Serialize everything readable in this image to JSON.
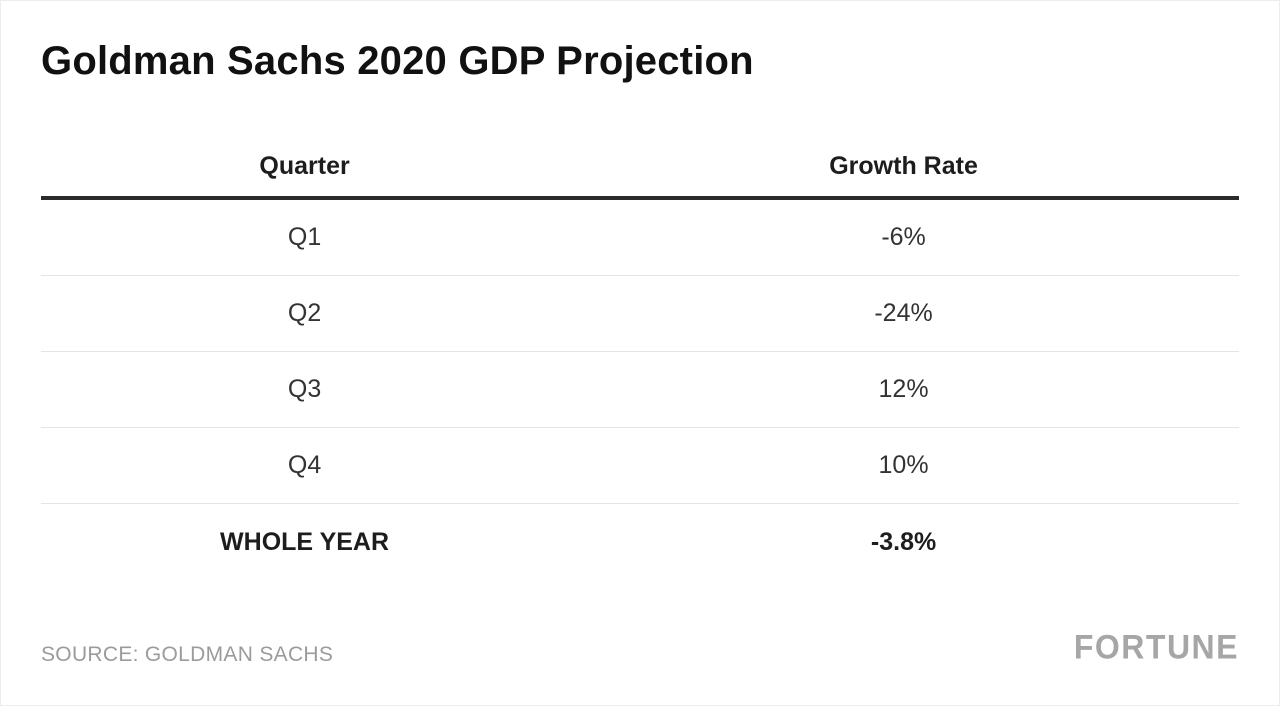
{
  "title": "Goldman Sachs 2020 GDP Projection",
  "source_note": "SOURCE: GOLDMAN SACHS",
  "brand": "FORTUNE",
  "colors": {
    "title": "#111111",
    "body_text": "#333333",
    "header_rule": "#2b2b2b",
    "row_divider": "#e4e4e4",
    "muted": "#9b9b9b",
    "logo": "#a6a6a6",
    "background": "#ffffff"
  },
  "chart_data": {
    "type": "table",
    "title": "Goldman Sachs 2020 GDP Projection",
    "columns": [
      "Quarter",
      "Growth Rate"
    ],
    "rows": [
      {
        "quarter": "Q1",
        "growth_rate": "-6%"
      },
      {
        "quarter": "Q2",
        "growth_rate": "-24%"
      },
      {
        "quarter": "Q3",
        "growth_rate": "12%"
      },
      {
        "quarter": "Q4",
        "growth_rate": "10%"
      },
      {
        "quarter": "WHOLE YEAR",
        "growth_rate": "-3.8%"
      }
    ],
    "source": "GOLDMAN SACHS",
    "layout": {
      "header_bold": true,
      "last_row_bold": true,
      "cell_alignment": "center"
    }
  }
}
